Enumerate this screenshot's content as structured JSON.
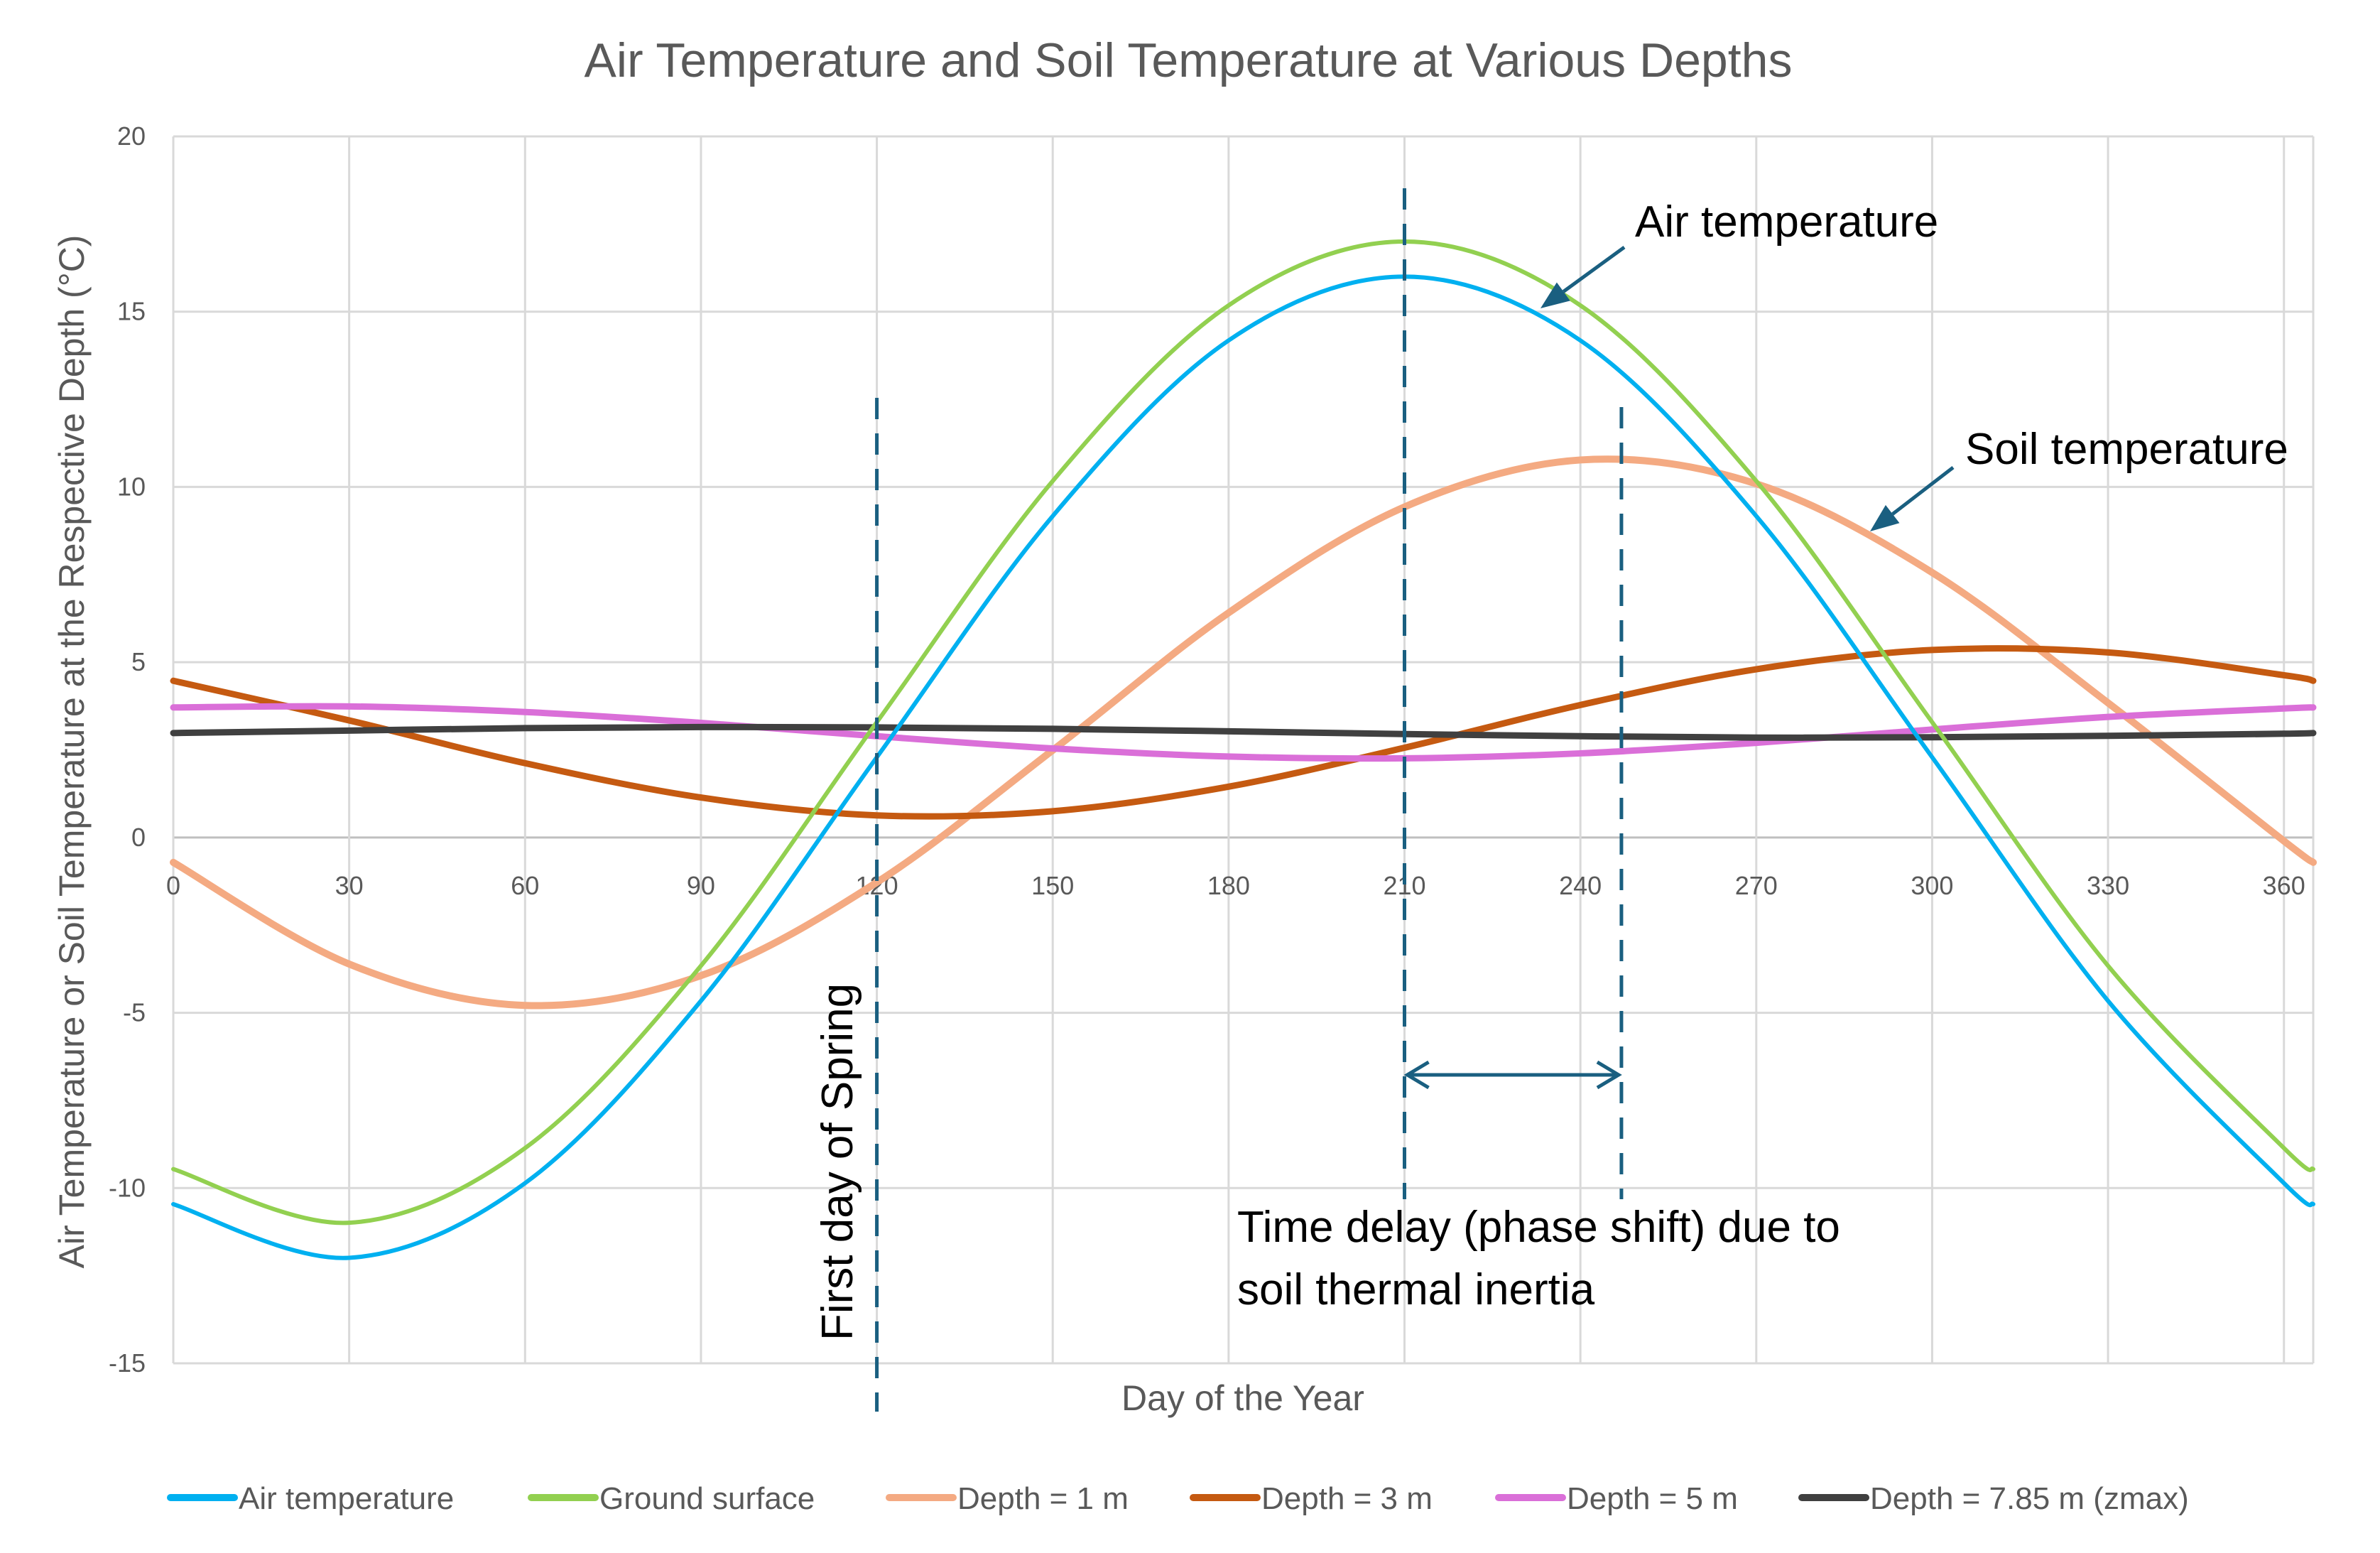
{
  "chart_data": {
    "type": "line",
    "title": "Air Temperature and Soil Temperature at Various Depths",
    "xlabel": "Day of the Year",
    "ylabel": "Air Temperature or Soil Temperature at the Respective Depth (°C)",
    "xlim": [
      0,
      365
    ],
    "ylim": [
      -15,
      20
    ],
    "xticks": [
      0,
      30,
      60,
      90,
      120,
      150,
      180,
      210,
      240,
      270,
      300,
      330,
      360
    ],
    "yticks": [
      -15,
      -10,
      -5,
      0,
      5,
      10,
      15,
      20
    ],
    "grid": true,
    "legend_position": "bottom",
    "x": [
      0,
      30,
      60,
      90,
      120,
      150,
      180,
      210,
      240,
      270,
      300,
      330,
      360,
      365
    ],
    "series": [
      {
        "name": "Air temperature",
        "color": "#00B0F0",
        "values": [
          -10.46,
          -11.99,
          -9.86,
          -4.66,
          2.29,
          9.17,
          14.18,
          16,
          14.18,
          9.17,
          2.29,
          -4.66,
          -9.86,
          -10.46
        ]
      },
      {
        "name": "Ground surface",
        "color": "#92D050",
        "values": [
          -9.46,
          -10.99,
          -8.86,
          -3.66,
          3.29,
          10.17,
          15.18,
          17,
          15.18,
          10.17,
          3.29,
          -3.66,
          -8.86,
          -9.46
        ]
      },
      {
        "name": "Depth = 1 m",
        "color": "#F4AA82",
        "values": [
          -0.71,
          -3.61,
          -4.79,
          -3.94,
          -1.28,
          2.49,
          6.41,
          9.43,
          10.77,
          10.09,
          7.56,
          3.84,
          -0.1,
          -0.71
        ]
      },
      {
        "name": "Depth = 3 m",
        "color": "#C55A11",
        "values": [
          4.47,
          3.34,
          2.12,
          1.14,
          0.63,
          0.75,
          1.45,
          2.56,
          3.78,
          4.8,
          5.35,
          5.28,
          4.63,
          4.47
        ]
      },
      {
        "name": "Depth = 5 m",
        "color": "#DA6FD8",
        "values": [
          3.71,
          3.74,
          3.58,
          3.27,
          2.89,
          2.54,
          2.31,
          2.26,
          2.4,
          2.7,
          3.08,
          3.44,
          3.68,
          3.71
        ]
      },
      {
        "name": "Depth = 7.85 m (zmax)",
        "color": "#404040",
        "values": [
          2.98,
          3.05,
          3.12,
          3.15,
          3.14,
          3.1,
          3.03,
          2.95,
          2.89,
          2.85,
          2.86,
          2.9,
          2.96,
          2.98
        ]
      }
    ],
    "annotations": {
      "air_label": "Air temperature",
      "soil_label": "Soil temperature",
      "spring_label": "First day of Spring",
      "delay_line1": "Time delay (phase shift) due to",
      "delay_line2": "soil thermal inertia",
      "marker_days": [
        120,
        210,
        247
      ],
      "color": "#1A5F80"
    }
  }
}
